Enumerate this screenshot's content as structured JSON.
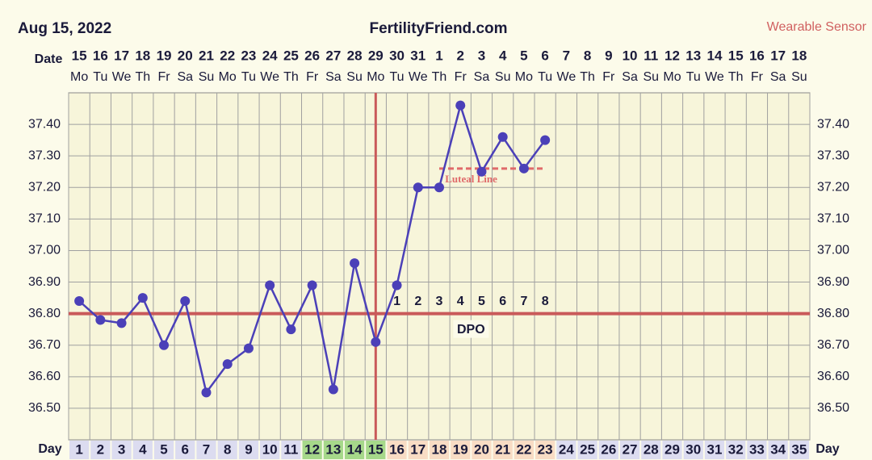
{
  "chart_data": {
    "type": "line",
    "title": "FertilityFriend.com",
    "chart_date": "Aug 15, 2022",
    "source": "Wearable Sensor",
    "date_label": "Date",
    "day_label": "Day",
    "categories": [
      1,
      2,
      3,
      4,
      5,
      6,
      7,
      8,
      9,
      10,
      11,
      12,
      13,
      14,
      15,
      16,
      17,
      18,
      19,
      20,
      21,
      22,
      23,
      24,
      25,
      26,
      27,
      28,
      29,
      30,
      31,
      32,
      33,
      34,
      35
    ],
    "dates": [
      "15",
      "16",
      "17",
      "18",
      "19",
      "20",
      "21",
      "22",
      "23",
      "24",
      "25",
      "26",
      "27",
      "28",
      "29",
      "30",
      "31",
      "1",
      "2",
      "3",
      "4",
      "5",
      "6",
      "7",
      "8",
      "9",
      "10",
      "11",
      "12",
      "13",
      "14",
      "15",
      "16",
      "17",
      "18"
    ],
    "weekdays": [
      "Mo",
      "Tu",
      "We",
      "Th",
      "Fr",
      "Sa",
      "Su",
      "Mo",
      "Tu",
      "We",
      "Th",
      "Fr",
      "Sa",
      "Su",
      "Mo",
      "Tu",
      "We",
      "Th",
      "Fr",
      "Sa",
      "Su",
      "Mo",
      "Tu",
      "We",
      "Th",
      "Fr",
      "Sa",
      "Su",
      "Mo",
      "Tu",
      "We",
      "Th",
      "Fr",
      "Sa",
      "Su"
    ],
    "color": "#4b40b8",
    "values": [
      36.84,
      36.78,
      36.77,
      36.85,
      36.7,
      36.84,
      36.55,
      36.64,
      36.69,
      36.89,
      36.75,
      36.89,
      36.56,
      36.96,
      36.71,
      36.89,
      37.2,
      37.2,
      37.46,
      37.25,
      37.36,
      37.26,
      37.35,
      null,
      null,
      null,
      null,
      null,
      null,
      null,
      null,
      null,
      null,
      null,
      null
    ],
    "ylim": [
      36.4,
      37.5
    ],
    "yticks": [
      {
        "value": 36.5,
        "label": "36.50"
      },
      {
        "value": 36.6,
        "label": "36.60"
      },
      {
        "value": 36.7,
        "label": "36.70"
      },
      {
        "value": 36.8,
        "label": "36.80"
      },
      {
        "value": 36.9,
        "label": "36.90"
      },
      {
        "value": 37.0,
        "label": "37.00"
      },
      {
        "value": 37.1,
        "label": "37.10"
      },
      {
        "value": 37.2,
        "label": "37.20"
      },
      {
        "value": 37.3,
        "label": "37.30"
      },
      {
        "value": 37.4,
        "label": "37.40"
      }
    ],
    "grid": true,
    "coverline": 36.8,
    "ovulation_day": 15,
    "fertile_days": [
      12,
      15
    ],
    "luteal_days": [
      16,
      23
    ],
    "luteal_line": {
      "label": "Luteal Line",
      "value": 37.26,
      "days": [
        18,
        23
      ]
    },
    "dpo": {
      "label": "DPO",
      "values": [
        1,
        2,
        3,
        4,
        5,
        6,
        7,
        8
      ]
    }
  }
}
